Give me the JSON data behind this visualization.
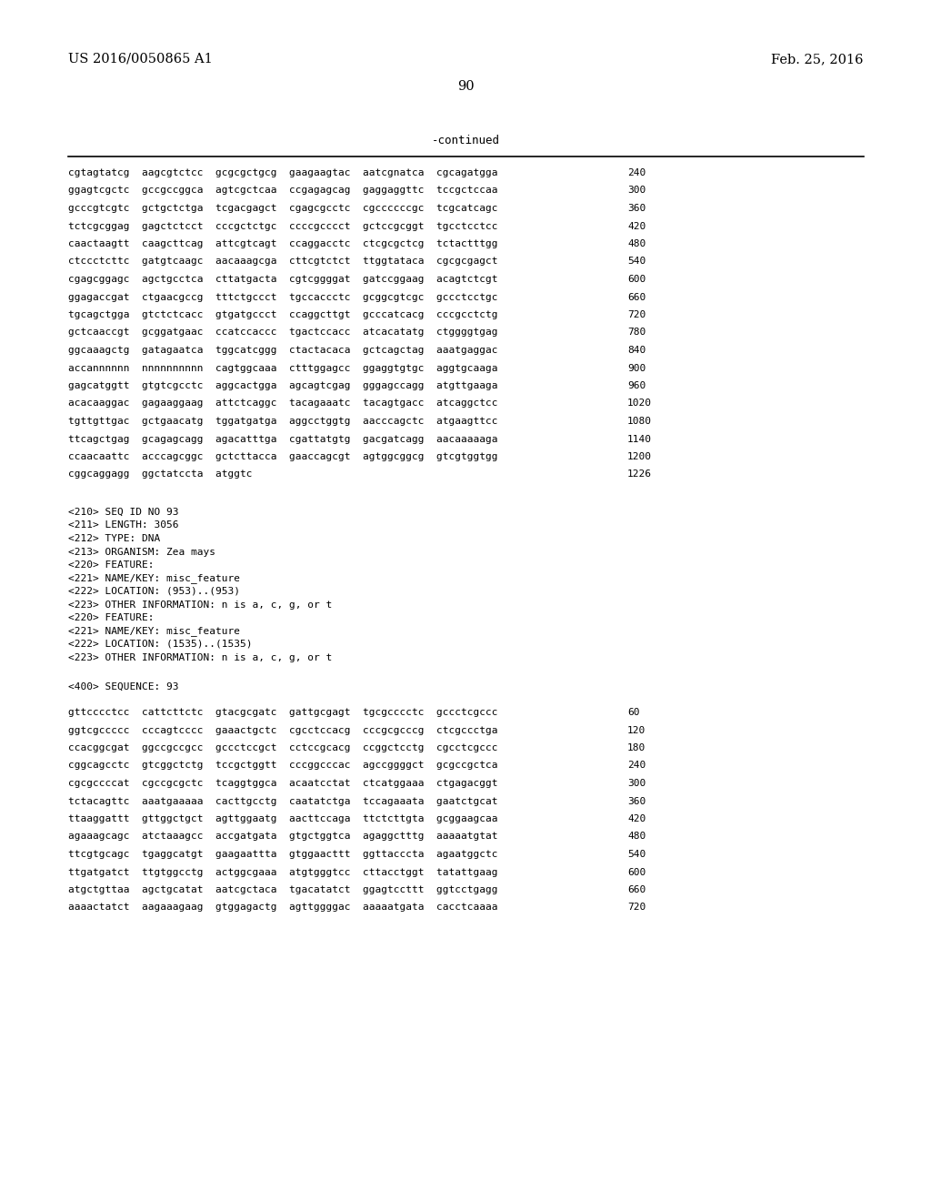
{
  "header_left": "US 2016/0050865 A1",
  "header_right": "Feb. 25, 2016",
  "page_number": "90",
  "continued_label": "-continued",
  "sequence_lines_top": [
    {
      "text": "cgtagtatcg  aagcgtctcc  gcgcgctgcg  gaagaagtac  aatcgnatca  cgcagatgga",
      "num": "240"
    },
    {
      "text": "ggagtcgctc  gccgccggca  agtcgctcaa  ccgagagcag  gaggaggttc  tccgctccaa",
      "num": "300"
    },
    {
      "text": "gcccgtcgtc  gctgctctga  tcgacgagct  cgagcgcctc  cgccccccgc  tcgcatcagc",
      "num": "360"
    },
    {
      "text": "tctcgcggag  gagctctcct  cccgctctgc  ccccgcccct  gctccgcggt  tgcctcctcc",
      "num": "420"
    },
    {
      "text": "caactaagtt  caagcttcag  attcgtcagt  ccaggacctc  ctcgcgctcg  tctactttgg",
      "num": "480"
    },
    {
      "text": "ctccctcttc  gatgtcaagc  aacaaagcga  cttcgtctct  ttggtataca  cgcgcgagct",
      "num": "540"
    },
    {
      "text": "cgagcggagc  agctgcctca  cttatgacta  cgtcggggat  gatccggaag  acagtctcgt",
      "num": "600"
    },
    {
      "text": "ggagaccgat  ctgaacgccg  tttctgccct  tgccaccctc  gcggcgtcgc  gccctcctgc",
      "num": "660"
    },
    {
      "text": "tgcagctgga  gtctctcacc  gtgatgccct  ccaggcttgt  gcccatcacg  cccgcctctg",
      "num": "720"
    },
    {
      "text": "gctcaaccgt  gcggatgaac  ccatccaccc  tgactccacc  atcacatatg  ctggggtgag",
      "num": "780"
    },
    {
      "text": "ggcaaagctg  gatagaatca  tggcatcggg  ctactacaca  gctcagctag  aaatgaggac",
      "num": "840"
    },
    {
      "text": "accannnnnn  nnnnnnnnnn  cagtggcaaa  ctttggagcc  ggaggtgtgc  aggtgcaaga",
      "num": "900"
    },
    {
      "text": "gagcatggtt  gtgtcgcctc  aggcactgga  agcagtcgag  gggagccagg  atgttgaaga",
      "num": "960"
    },
    {
      "text": "acacaaggac  gagaaggaag  attctcaggc  tacagaaatc  tacagtgacc  atcaggctcc",
      "num": "1020"
    },
    {
      "text": "tgttgttgac  gctgaacatg  tggatgatga  aggcctggtg  aacccagctc  atgaagttcc",
      "num": "1080"
    },
    {
      "text": "ttcagctgag  gcagagcagg  agacatttga  cgattatgtg  gacgatcagg  aacaaaaaga",
      "num": "1140"
    },
    {
      "text": "ccaacaattc  acccagcggc  gctcttacca  gaaccagcgt  agtggcggcg  gtcgtggtgg",
      "num": "1200"
    },
    {
      "text": "cggcaggagg  ggctatccta  atggtc",
      "num": "1226"
    }
  ],
  "metadata_lines": [
    "<210> SEQ ID NO 93",
    "<211> LENGTH: 3056",
    "<212> TYPE: DNA",
    "<213> ORGANISM: Zea mays",
    "<220> FEATURE:",
    "<221> NAME/KEY: misc_feature",
    "<222> LOCATION: (953)..(953)",
    "<223> OTHER INFORMATION: n is a, c, g, or t",
    "<220> FEATURE:",
    "<221> NAME/KEY: misc_feature",
    "<222> LOCATION: (1535)..(1535)",
    "<223> OTHER INFORMATION: n is a, c, g, or t"
  ],
  "sequence_label": "<400> SEQUENCE: 93",
  "sequence_lines_bottom": [
    {
      "text": "gttcccctcc  cattcttctc  gtacgcgatc  gattgcgagt  tgcgcccctc  gccctcgccc",
      "num": "60"
    },
    {
      "text": "ggtcgccccc  cccagtcccc  gaaactgctc  cgcctccacg  cccgcgcccg  ctcgccctga",
      "num": "120"
    },
    {
      "text": "ccacggcgat  ggccgccgcc  gccctccgct  cctccgcacg  ccggctcctg  cgcctcgccc",
      "num": "180"
    },
    {
      "text": "cggcagcctc  gtcggctctg  tccgctggtt  cccggcccac  agccggggct  gcgccgctca",
      "num": "240"
    },
    {
      "text": "cgcgccccat  cgccgcgctc  tcaggtggca  acaatcctat  ctcatggaaa  ctgagacggt",
      "num": "300"
    },
    {
      "text": "tctacagttc  aaatgaaaaa  cacttgcctg  caatatctga  tccagaaata  gaatctgcat",
      "num": "360"
    },
    {
      "text": "ttaaggattt  gttggctgct  agttggaatg  aacttccaga  ttctcttgta  gcggaagcaa",
      "num": "420"
    },
    {
      "text": "agaaagcagc  atctaaagcc  accgatgata  gtgctggtca  agaggctttg  aaaaatgtat",
      "num": "480"
    },
    {
      "text": "ttcgtgcagc  tgaggcatgt  gaagaattta  gtggaacttt  ggttacccta  agaatggctc",
      "num": "540"
    },
    {
      "text": "ttgatgatct  ttgtggcctg  actggcgaaa  atgtgggtcc  cttacctggt  tatattgaag",
      "num": "600"
    },
    {
      "text": "atgctgttaa  agctgcatat  aatcgctaca  tgacatatct  ggagtccttt  ggtcctgagg",
      "num": "660"
    },
    {
      "text": "aaaactatct  aagaaagaag  gtggagactg  agttggggac  aaaaatgata  cacctcaaaa",
      "num": "720"
    }
  ],
  "bg_color": "#ffffff",
  "text_color": "#000000"
}
